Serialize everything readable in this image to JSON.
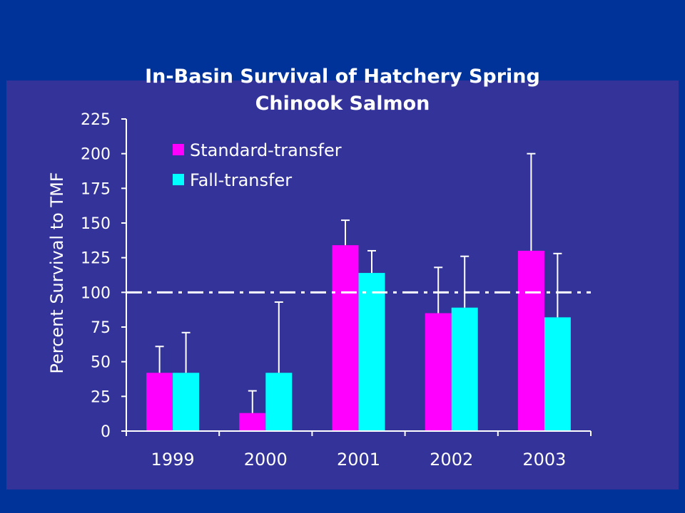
{
  "colors": {
    "background": "#003399",
    "panel": "#333399",
    "axis": "#ffffff",
    "text": "#ffffff"
  },
  "chart_data": {
    "type": "bar",
    "title_lines": [
      "In-Basin Survival of Hatchery Spring",
      "Chinook Salmon"
    ],
    "xlabel": "",
    "ylabel": "Percent Survival to TMF",
    "categories": [
      "1999",
      "2000",
      "2001",
      "2002",
      "2003"
    ],
    "ylim": [
      0,
      225
    ],
    "yticks": [
      0,
      25,
      50,
      75,
      100,
      125,
      150,
      175,
      200,
      225
    ],
    "grid": false,
    "legend_position": "top-left",
    "reference_line": {
      "value": 100,
      "style": "dash-dot",
      "color": "#ffffff"
    },
    "series": [
      {
        "name": "Standard-transfer",
        "color": "#ff00ff",
        "values": [
          42,
          13,
          134,
          85,
          130
        ],
        "error_upper": [
          61,
          29,
          152,
          118,
          200
        ]
      },
      {
        "name": "Fall-transfer",
        "color": "#00ffff",
        "values": [
          42,
          42,
          114,
          89,
          82
        ],
        "error_upper": [
          71,
          93,
          130,
          126,
          128
        ]
      }
    ]
  }
}
